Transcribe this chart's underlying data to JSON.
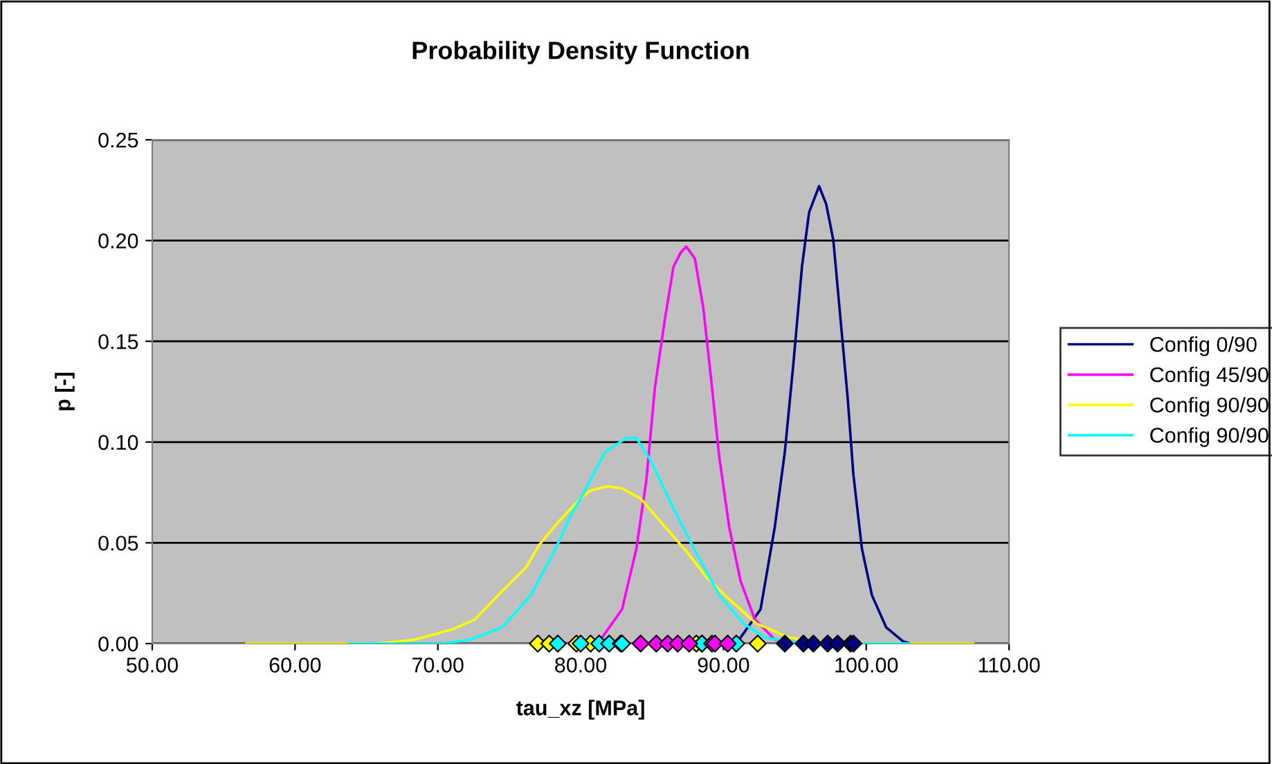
{
  "chart_data": {
    "type": "line",
    "title": "Probability Density Function",
    "xlabel": "tau_xz [MPa]",
    "ylabel": "p [-]",
    "xlim": [
      50,
      110
    ],
    "ylim": [
      0,
      0.25
    ],
    "xticks": [
      {
        "value": 50,
        "label": "50.00"
      },
      {
        "value": 60,
        "label": "60.00"
      },
      {
        "value": 70,
        "label": "70.00"
      },
      {
        "value": 80,
        "label": "80.00"
      },
      {
        "value": 90,
        "label": "90.00"
      },
      {
        "value": 100,
        "label": "100.00"
      },
      {
        "value": 110,
        "label": "110.00"
      }
    ],
    "yticks": [
      {
        "value": 0,
        "label": "0.00"
      },
      {
        "value": 0.05,
        "label": "0.05"
      },
      {
        "value": 0.1,
        "label": "0.10"
      },
      {
        "value": 0.15,
        "label": "0.15"
      },
      {
        "value": 0.2,
        "label": "0.20"
      },
      {
        "value": 0.25,
        "label": "0.25"
      }
    ],
    "grid": "y",
    "legend": "right",
    "series": [
      {
        "name": "Config 0/90",
        "color": "#000080",
        "x": [
          85.0,
          91.0,
          92.6,
          93.6,
          94.3,
          94.9,
          95.5,
          96.0,
          96.7,
          97.2,
          97.7,
          98.2,
          98.7,
          99.1,
          99.7,
          100.4,
          101.4,
          102.6,
          103.1
        ],
        "values": [
          0,
          0.001,
          0.017,
          0.058,
          0.095,
          0.139,
          0.187,
          0.214,
          0.227,
          0.218,
          0.2,
          0.161,
          0.122,
          0.084,
          0.047,
          0.024,
          0.008,
          0.001,
          0
        ]
      },
      {
        "name": "Config 45/90",
        "color": "#ff00ff",
        "x": [
          78.0,
          81.3,
          82.9,
          83.9,
          84.6,
          85.2,
          85.9,
          86.5,
          87.0,
          87.4,
          88.0,
          88.6,
          89.2,
          89.7,
          90.4,
          91.2,
          92.2,
          93.6,
          94.9
        ],
        "values": [
          0,
          0.001,
          0.017,
          0.047,
          0.081,
          0.127,
          0.161,
          0.187,
          0.194,
          0.197,
          0.191,
          0.166,
          0.127,
          0.093,
          0.058,
          0.031,
          0.012,
          0.002,
          0
        ]
      },
      {
        "name": "Config 90/90",
        "color": "#ffff00",
        "x": [
          56.6,
          65.8,
          68.4,
          71.0,
          72.6,
          74.5,
          76.2,
          77.1,
          78.4,
          80.0,
          80.7,
          81.9,
          82.9,
          84.2,
          85.9,
          87.5,
          88.8,
          90.4,
          92.3,
          94.6,
          96.8,
          99.4,
          107.5
        ],
        "values": [
          0,
          0,
          0.002,
          0.007,
          0.012,
          0.026,
          0.038,
          0.049,
          0.06,
          0.072,
          0.076,
          0.078,
          0.077,
          0.072,
          0.058,
          0.045,
          0.033,
          0.022,
          0.01,
          0.003,
          0.001,
          0,
          0
        ]
      },
      {
        "name": "Config 90/90",
        "color": "#00ffff",
        "x": [
          63.8,
          70.3,
          72.3,
          74.5,
          76.5,
          78.1,
          79.4,
          80.0,
          81.7,
          83.2,
          83.9,
          84.9,
          86.5,
          88.1,
          89.7,
          91.4,
          92.9,
          94.6,
          96.2,
          103.0
        ],
        "values": [
          0,
          0,
          0.002,
          0.008,
          0.024,
          0.045,
          0.065,
          0.072,
          0.095,
          0.102,
          0.102,
          0.091,
          0.067,
          0.045,
          0.024,
          0.01,
          0.003,
          0.001,
          0,
          0
        ]
      },
      {
        "type": "scatter",
        "marker": "diamond",
        "color": "#ffff00",
        "x": [
          77.0,
          77.8,
          79.7,
          80.7,
          88.1,
          88.5,
          92.4
        ],
        "values": [
          0,
          0,
          0,
          0,
          0,
          0,
          0
        ]
      },
      {
        "type": "scatter",
        "marker": "diamond",
        "color": "#00ffff",
        "x": [
          78.4,
          80.0,
          81.3,
          82.0,
          82.8,
          82.9,
          88.5,
          90.9
        ],
        "values": [
          0,
          0,
          0,
          0,
          0,
          0,
          0,
          0
        ]
      },
      {
        "type": "scatter",
        "marker": "diamond",
        "color": "#ff00ff",
        "x": [
          84.2,
          85.3,
          86.1,
          86.8,
          87.6,
          89.2,
          89.4,
          90.3
        ],
        "values": [
          0,
          0,
          0,
          0,
          0,
          0,
          0,
          0
        ]
      },
      {
        "type": "scatter",
        "marker": "diamond",
        "color": "#000080",
        "x": [
          94.3,
          95.6,
          96.3,
          97.3,
          98.0,
          98.9,
          99.1
        ],
        "values": [
          0,
          0,
          0,
          0,
          0,
          0,
          0
        ]
      }
    ]
  }
}
